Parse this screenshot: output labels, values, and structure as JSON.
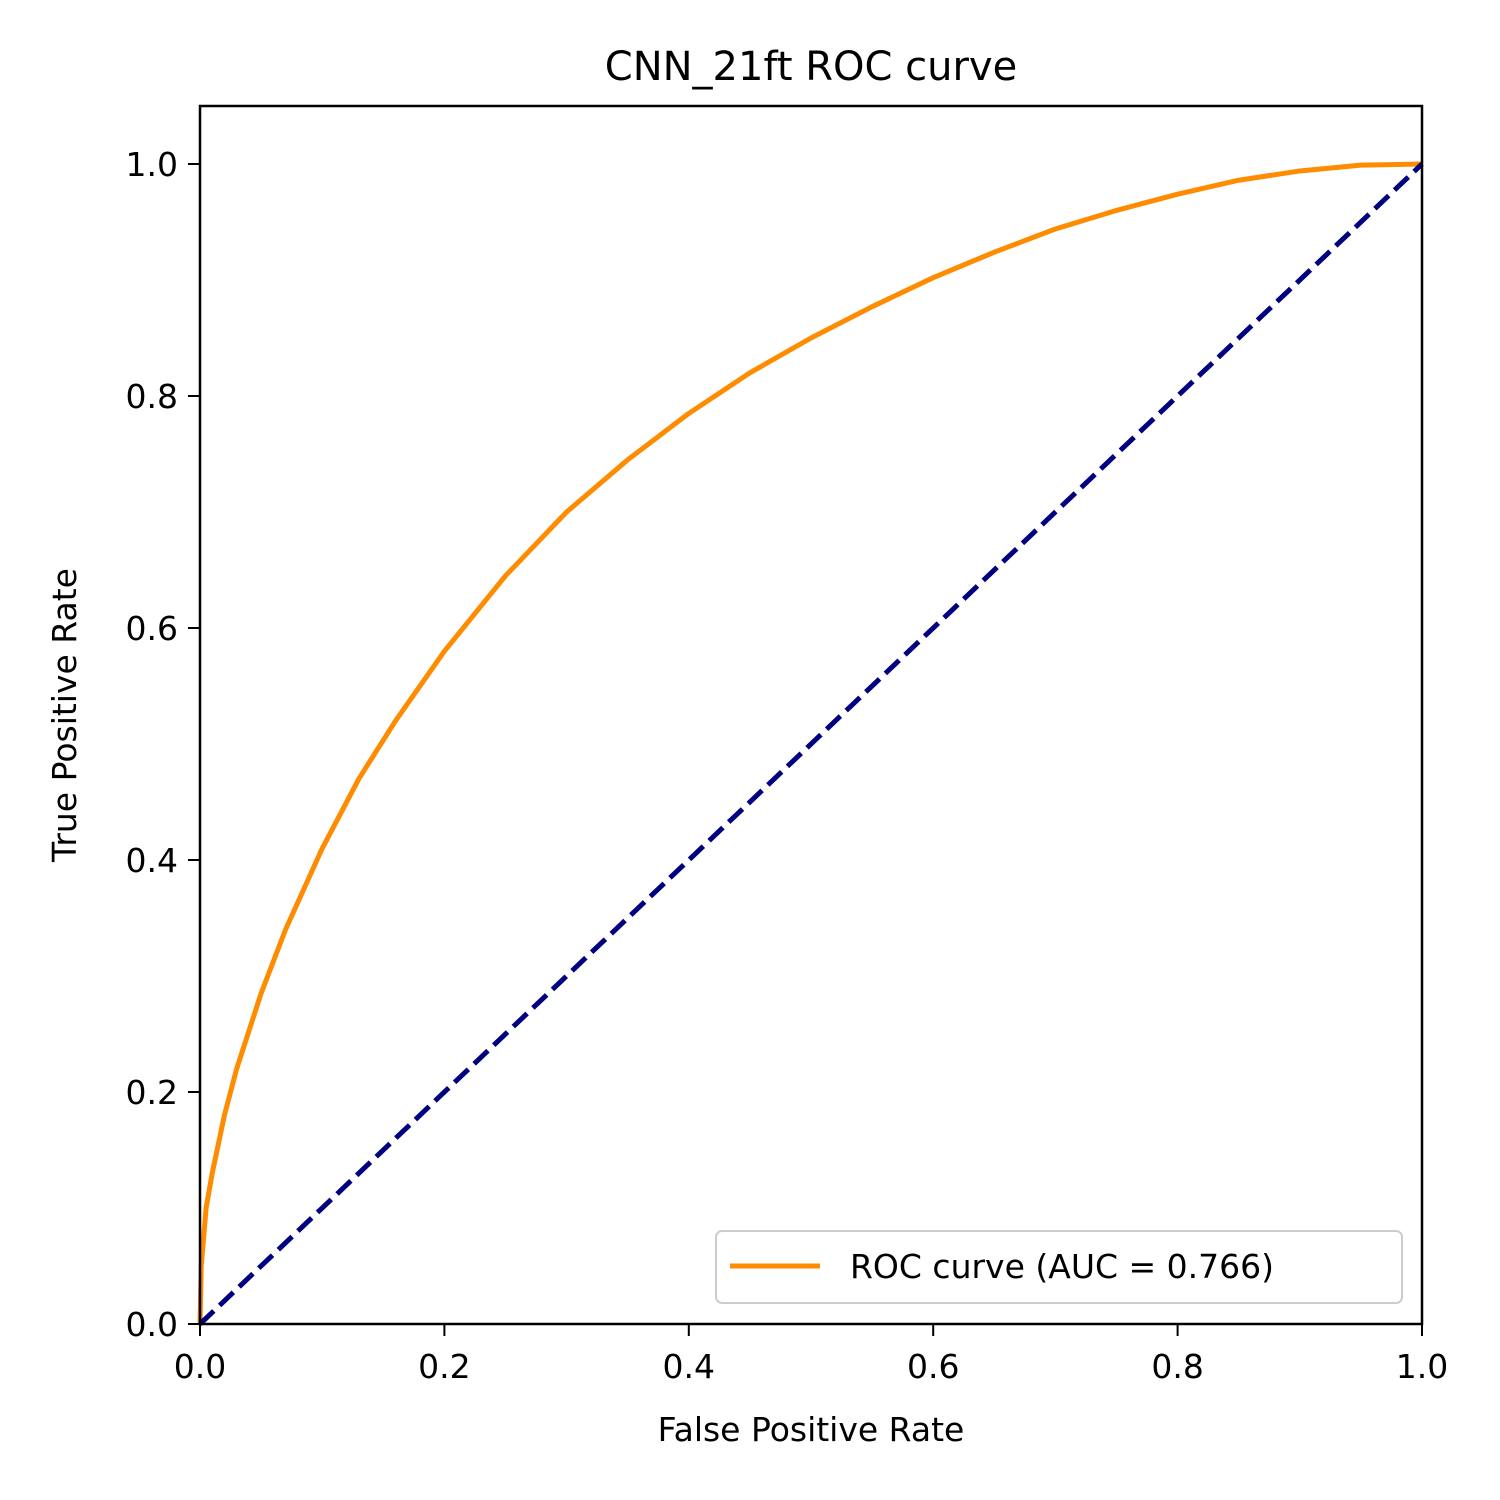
{
  "chart_data": {
    "type": "line",
    "title": "CNN_21ft ROC curve",
    "xlabel": "False Positive Rate",
    "ylabel": "True Positive Rate",
    "xlim": [
      0.0,
      1.0
    ],
    "ylim": [
      0.0,
      1.05
    ],
    "xticks": [
      0.0,
      0.2,
      0.4,
      0.6,
      0.8,
      1.0
    ],
    "yticks": [
      0.0,
      0.2,
      0.4,
      0.6,
      0.8,
      1.0
    ],
    "xtick_labels": [
      "0.0",
      "0.2",
      "0.4",
      "0.6",
      "0.8",
      "1.0"
    ],
    "ytick_labels": [
      "0.0",
      "0.2",
      "0.4",
      "0.6",
      "0.8",
      "1.0"
    ],
    "grid": false,
    "legend_position": "lower-right",
    "series": [
      {
        "name": "ROC curve (AUC = 0.766)",
        "color": "#ff8c00",
        "style": "solid",
        "x": [
          0.0,
          0.001,
          0.005,
          0.01,
          0.02,
          0.03,
          0.05,
          0.07,
          0.1,
          0.13,
          0.16,
          0.2,
          0.25,
          0.3,
          0.35,
          0.4,
          0.45,
          0.5,
          0.55,
          0.6,
          0.65,
          0.7,
          0.75,
          0.8,
          0.85,
          0.9,
          0.95,
          1.0
        ],
        "y": [
          0.0,
          0.05,
          0.1,
          0.13,
          0.18,
          0.22,
          0.285,
          0.34,
          0.41,
          0.47,
          0.52,
          0.58,
          0.645,
          0.7,
          0.745,
          0.785,
          0.82,
          0.85,
          0.877,
          0.902,
          0.924,
          0.944,
          0.96,
          0.974,
          0.986,
          0.994,
          0.999,
          1.0
        ]
      },
      {
        "name": "",
        "color": "#000080",
        "style": "dashed",
        "x": [
          0.0,
          1.0
        ],
        "y": [
          0.0,
          1.0
        ]
      }
    ]
  }
}
